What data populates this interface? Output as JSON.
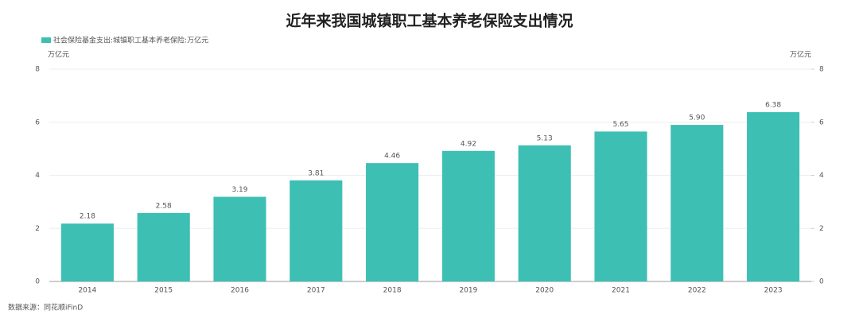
{
  "chart_data": {
    "type": "bar",
    "title": "近年来我国城镇职工基本养老保险支出情况",
    "y_unit_label": "万亿元",
    "y2_unit_label": "万亿元",
    "categories": [
      "2014",
      "2015",
      "2016",
      "2017",
      "2018",
      "2019",
      "2020",
      "2021",
      "2022",
      "2023"
    ],
    "series": [
      {
        "name": "社会保险基金支出:城镇职工基本养老保险:万亿元",
        "color": "#3dbfb4",
        "values": [
          2.18,
          2.58,
          3.19,
          3.81,
          4.46,
          4.92,
          5.13,
          5.65,
          5.9,
          6.38
        ],
        "value_labels": [
          "2.18",
          "2.58",
          "3.19",
          "3.81",
          "4.46",
          "4.92",
          "5.13",
          "5.65",
          "5.90",
          "6.38"
        ]
      }
    ],
    "ylim": [
      0,
      8
    ],
    "yticks": [
      0,
      2,
      4,
      6,
      8
    ],
    "y2lim": [
      0,
      8
    ],
    "y2ticks": [
      0,
      2,
      4,
      6,
      8
    ],
    "grid": true,
    "source": "数据来源：同花顺iFinD"
  }
}
